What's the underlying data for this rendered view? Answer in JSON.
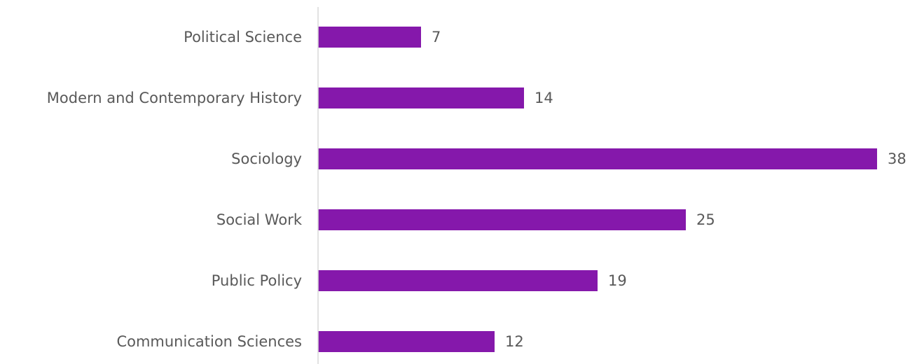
{
  "chart_data": {
    "type": "bar",
    "orientation": "horizontal",
    "categories": [
      "Political Science",
      "Modern and Contemporary History",
      "Sociology",
      "Social Work",
      "Public Policy",
      "Communication Sciences"
    ],
    "values": [
      7,
      14,
      38,
      25,
      19,
      12
    ],
    "title": "",
    "xlabel": "",
    "ylabel": "",
    "xlim": [
      0,
      38
    ],
    "grid": false,
    "legend": "none",
    "data_labels": true,
    "bar_color": "#8518ab",
    "axis_color": "#d9d9d9",
    "text_color": "#595959"
  }
}
